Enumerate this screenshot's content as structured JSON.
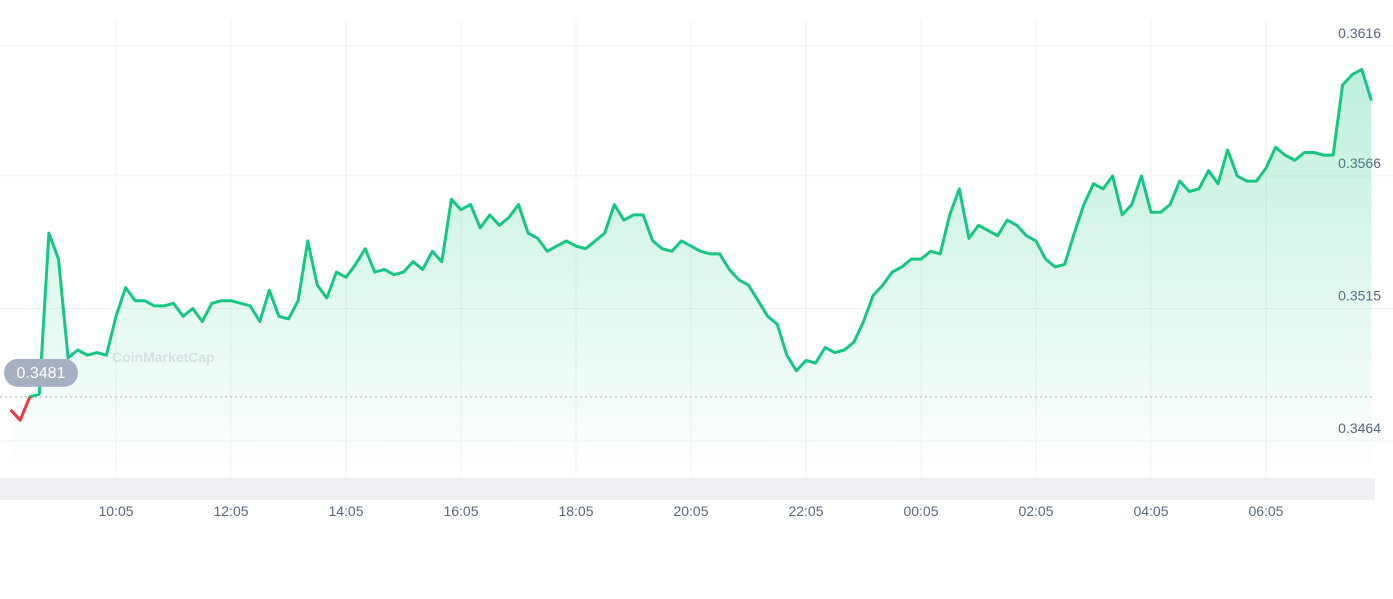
{
  "chart_data": {
    "type": "line",
    "watermark": "CoinMarketCap",
    "categories": [
      null,
      null,
      null,
      null,
      null,
      null,
      null,
      null,
      null,
      null,
      null,
      "10:05",
      null,
      null,
      null,
      null,
      null,
      null,
      null,
      null,
      null,
      null,
      null,
      "12:05",
      null,
      null,
      null,
      null,
      null,
      null,
      null,
      null,
      null,
      null,
      null,
      "14:05",
      null,
      null,
      null,
      null,
      null,
      null,
      null,
      null,
      null,
      null,
      null,
      "16:05",
      null,
      null,
      null,
      null,
      null,
      null,
      null,
      null,
      null,
      null,
      null,
      "18:05",
      null,
      null,
      null,
      null,
      null,
      null,
      null,
      null,
      null,
      null,
      null,
      "20:05",
      null,
      null,
      null,
      null,
      null,
      null,
      null,
      null,
      null,
      null,
      null,
      "22:05",
      null,
      null,
      null,
      null,
      null,
      null,
      null,
      null,
      null,
      null,
      null,
      "00:05",
      null,
      null,
      null,
      null,
      null,
      null,
      null,
      null,
      null,
      null,
      null,
      "02:05",
      null,
      null,
      null,
      null,
      null,
      null,
      null,
      null,
      null,
      null,
      null,
      "04:05",
      null,
      null,
      null,
      null,
      null,
      null,
      null,
      null,
      null,
      null,
      null,
      "06:05",
      null,
      null,
      null,
      null,
      null,
      null,
      null,
      null,
      null,
      null,
      null
    ],
    "values": [
      0.3476,
      0.3472,
      0.3481,
      0.3482,
      0.3544,
      0.3534,
      0.3496,
      0.3499,
      0.3497,
      0.3498,
      0.3497,
      0.3512,
      0.3523,
      0.3518,
      0.3518,
      0.3516,
      0.3516,
      0.3517,
      0.3512,
      0.3515,
      0.351,
      0.3517,
      0.3518,
      0.3518,
      0.3517,
      0.3516,
      0.351,
      0.3522,
      0.3512,
      0.3511,
      0.3518,
      0.3541,
      0.3524,
      0.3519,
      0.3529,
      0.3527,
      0.3532,
      0.3538,
      0.3529,
      0.353,
      0.3528,
      0.3529,
      0.3533,
      0.353,
      0.3537,
      0.3533,
      0.3557,
      0.3553,
      0.3555,
      0.3546,
      0.3551,
      0.3547,
      0.355,
      0.3555,
      0.3544,
      0.3542,
      0.3537,
      0.3539,
      0.3541,
      0.3539,
      0.3538,
      0.3541,
      0.3544,
      0.3555,
      0.3549,
      0.3551,
      0.3551,
      0.3541,
      0.3538,
      0.3537,
      0.3541,
      0.3539,
      0.3537,
      0.3536,
      0.3536,
      0.353,
      0.3526,
      0.3524,
      0.3518,
      0.3512,
      0.3509,
      0.3497,
      0.3491,
      0.3495,
      0.3494,
      0.35,
      0.3498,
      0.3499,
      0.3502,
      0.351,
      0.352,
      0.3524,
      0.3529,
      0.3531,
      0.3534,
      0.3534,
      0.3537,
      0.3536,
      0.3551,
      0.3561,
      0.3542,
      0.3547,
      0.3545,
      0.3543,
      0.3549,
      0.3547,
      0.3543,
      0.3541,
      0.3534,
      0.3531,
      0.3532,
      0.3544,
      0.3555,
      0.3563,
      0.3561,
      0.3566,
      0.3551,
      0.3555,
      0.3566,
      0.3552,
      0.3552,
      0.3555,
      0.3564,
      0.356,
      0.3561,
      0.3568,
      0.3563,
      0.3576,
      0.3566,
      0.3564,
      0.3564,
      0.3569,
      0.3577,
      0.3574,
      0.3572,
      0.3575,
      0.3575,
      0.3574,
      0.3574,
      0.3601,
      0.3605,
      0.3607,
      0.3595
    ],
    "baseline": 0.3481,
    "up_color": "#16c784",
    "down_color": "#ea3943",
    "ylim": [
      0.3464,
      0.3616
    ],
    "yticks": [
      0.3464,
      0.3515,
      0.3566,
      0.3616
    ],
    "grid": true
  }
}
